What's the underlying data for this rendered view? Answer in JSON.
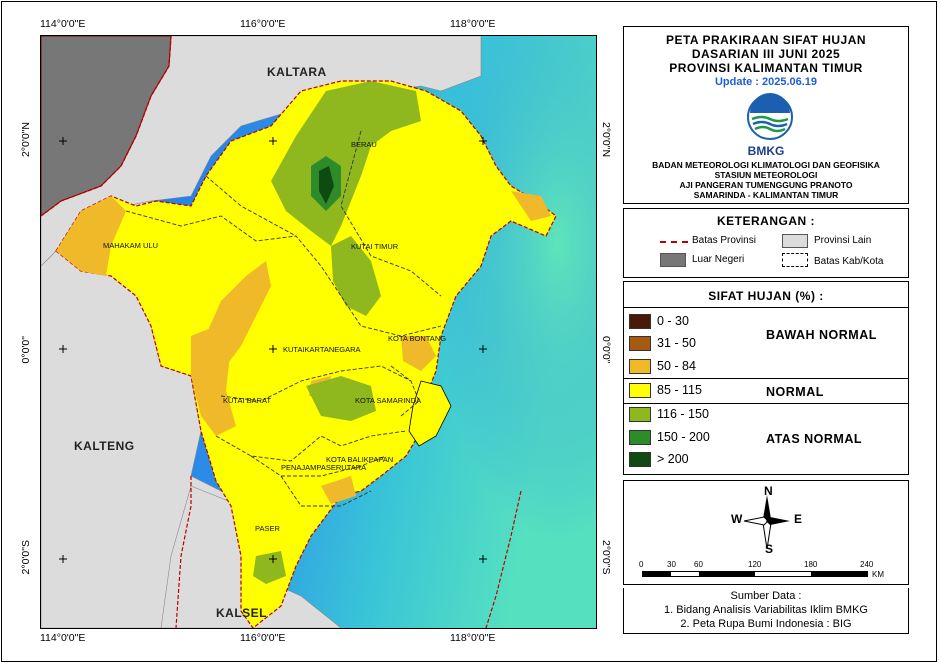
{
  "map": {
    "coords_top": [
      "114°0'0\"E",
      "116°0'0\"E",
      "118°0'0\"E"
    ],
    "coords_bottom": [
      "114°0'0\"E",
      "116°0'0\"E",
      "118°0'0\"E"
    ],
    "coords_left": [
      "2°0'0\"N",
      "0°0'0\"",
      "2°0'0\"S"
    ],
    "coords_right": [
      "2°0'0\"N",
      "0°0'0\"",
      "2°0'0\"S"
    ],
    "regions": {
      "kaltara": "KALTARA",
      "kalteng": "KALTENG",
      "kalsel": "KALSEL"
    },
    "districts": {
      "berau": "BERAU",
      "mahakam_ulu": "MAHAKAM ULU",
      "kutai_timur": "KUTAI TIMUR",
      "kutai_kartanegara": "KUTAIKARTANEGARA",
      "kota_bontang": "KOTA BONTANG",
      "kutai_barat": "KUTAI BARAT",
      "kota_samarinda": "KOTA SAMARINDA",
      "kota_balikpapan": "KOTA BALIKPAPAN",
      "penajam": "PENAJAMPASERUTARA",
      "paser": "PASER"
    }
  },
  "title": {
    "line1": "PETA PRAKIRAAN SIFAT HUJAN",
    "line2": "DASARIAN III JUNI 2025",
    "line3": "PROVINSI KALIMANTAN TIMUR",
    "update": "Update : 2025.06.19",
    "logo_text": "BMKG",
    "org1": "BADAN METEOROLOGI KLIMATOLOGI DAN GEOFISIKA",
    "org2": "STASIUN METEOROLOGI",
    "org3": "AJI PANGERAN TUMENGGUNG PRANOTO",
    "org4": "SAMARINDA - KALIMANTAN TIMUR"
  },
  "legend": {
    "heading": "KETERANGAN :",
    "batas_provinsi": "Batas Provinsi",
    "provinsi_lain": "Provinsi Lain",
    "luar_negeri": "Luar Negeri",
    "batas_kab": "Batas Kab/Kota"
  },
  "classes": {
    "heading": "SIFAT HUJAN (%) :",
    "items": [
      {
        "label": "0 - 30",
        "color": "#4a1a05"
      },
      {
        "label": "31 - 50",
        "color": "#a65a12"
      },
      {
        "label": "50 - 84",
        "color": "#f0b92a"
      },
      {
        "label": "85 - 115",
        "color": "#ffff00"
      },
      {
        "label": "116 - 150",
        "color": "#8fb81e"
      },
      {
        "label": "150 - 200",
        "color": "#2e8b2a"
      },
      {
        "label": "> 200",
        "color": "#0f4a12"
      }
    ],
    "group_below": "BAWAH NORMAL",
    "group_normal": "NORMAL",
    "group_above": "ATAS NORMAL"
  },
  "compass": {
    "n": "N",
    "s": "S",
    "e": "E",
    "w": "W"
  },
  "scale": {
    "ticks": [
      "0",
      "30",
      "60",
      "120",
      "180",
      "240"
    ],
    "unit": "KM"
  },
  "source": {
    "heading": "Sumber Data :",
    "line1": "1. Bidang Analisis Variabilitas Iklim BMKG",
    "line2": "2. Peta Rupa Bumi Indonesia : BIG"
  }
}
